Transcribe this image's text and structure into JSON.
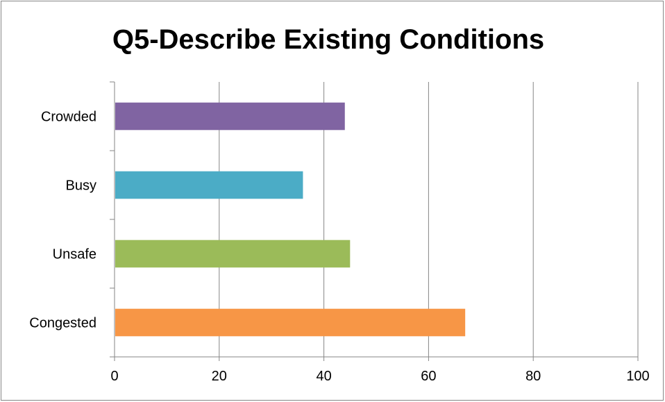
{
  "chart_data": {
    "type": "bar",
    "orientation": "horizontal",
    "title": "Q5-Describe Existing Conditions",
    "xlabel": "",
    "ylabel": "",
    "categories": [
      "Congested",
      "Unsafe",
      "Busy",
      "Crowded"
    ],
    "values": [
      67,
      45,
      36,
      44
    ],
    "colors": [
      "#F79646",
      "#9BBB59",
      "#4BACC6",
      "#8064A2"
    ],
    "xlim": [
      0,
      100
    ],
    "xticks": [
      "0",
      "20",
      "40",
      "60",
      "80",
      "100"
    ],
    "grid": "vertical-major",
    "legend": "none"
  }
}
